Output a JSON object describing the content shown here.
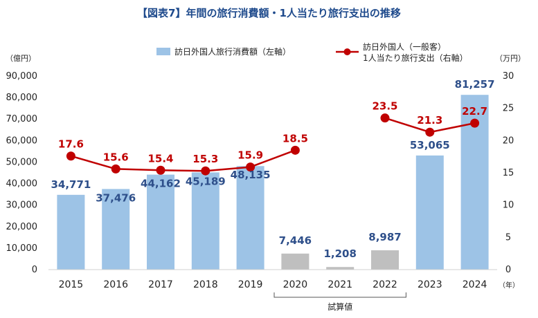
{
  "title": "【図表7】年間の旅行消費額・1人当たり旅行支出の推移",
  "legend": {
    "bar_label": "訪日外国人旅行消費額（左軸）",
    "line_label_1": "訪日外国人（一般客）",
    "line_label_2": "1人当たり旅行支出（右軸）"
  },
  "axis": {
    "left_unit": "（億円）",
    "right_unit": "（万円）",
    "x_unit": "（年）"
  },
  "bracket_label": "試算値",
  "colors": {
    "bar_actual": "#9dc3e6",
    "bar_estimate": "#bfbfbf",
    "line": "#c00000",
    "bar_value_text": "#2e4f8a",
    "line_value_text": "#c00000",
    "title": "#1e4a8c"
  },
  "chart_data": {
    "type": "bar+line",
    "categories": [
      "2015",
      "2016",
      "2017",
      "2018",
      "2019",
      "2020",
      "2021",
      "2022",
      "2023",
      "2024"
    ],
    "estimated_categories": [
      "2020",
      "2021",
      "2022"
    ],
    "bar_series": {
      "name": "訪日外国人旅行消費額（左軸）",
      "values": [
        34771,
        37476,
        44162,
        45189,
        48135,
        7446,
        1208,
        8987,
        53065,
        81257
      ],
      "labels": [
        "34,771",
        "37,476",
        "44,162",
        "45,189",
        "48,135",
        "7,446",
        "1,208",
        "8,987",
        "53,065",
        "81,257"
      ]
    },
    "line_series": {
      "name": "訪日外国人（一般客）1人当たり旅行支出（右軸）",
      "segments": [
        {
          "categories": [
            "2015",
            "2016",
            "2017",
            "2018",
            "2019",
            "2020"
          ],
          "values": [
            17.6,
            15.6,
            15.4,
            15.3,
            15.9,
            18.5
          ]
        },
        {
          "categories": [
            "2022",
            "2023",
            "2024"
          ],
          "values": [
            23.5,
            21.3,
            22.7
          ]
        }
      ],
      "labels": [
        "17.6",
        "15.6",
        "15.4",
        "15.3",
        "15.9",
        "18.5",
        "23.5",
        "21.3",
        "22.7"
      ]
    },
    "left_axis": {
      "ylim": [
        0,
        90000
      ],
      "ticks": [
        "0",
        "10,000",
        "20,000",
        "30,000",
        "40,000",
        "50,000",
        "60,000",
        "70,000",
        "80,000",
        "90,000"
      ]
    },
    "right_axis": {
      "ylim": [
        0,
        30
      ],
      "ticks": [
        "0",
        "5",
        "10",
        "15",
        "20",
        "25",
        "30"
      ]
    },
    "grid": false,
    "legend_position": "top"
  }
}
